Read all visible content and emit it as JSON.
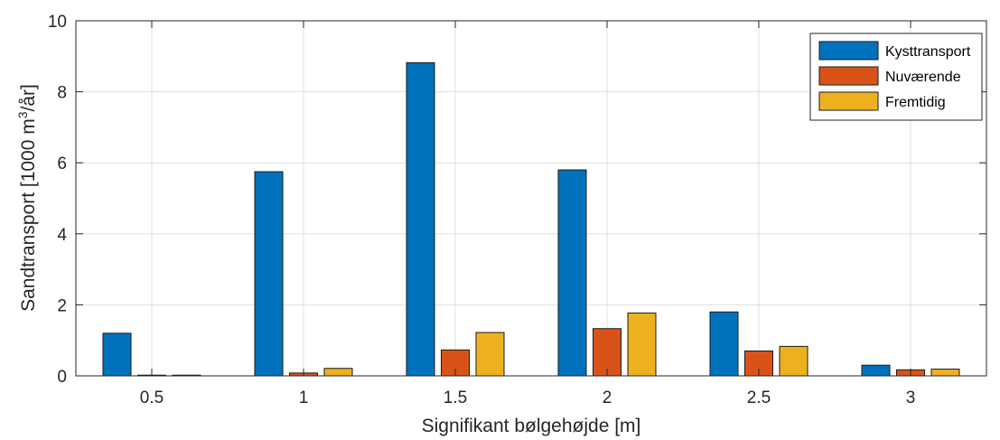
{
  "chart_data": {
    "type": "bar",
    "categories": [
      "0.5",
      "1",
      "1.5",
      "2",
      "2.5",
      "3"
    ],
    "series": [
      {
        "name": "Kysttransport",
        "color": "#0072BD",
        "values": [
          1.2,
          5.75,
          8.82,
          5.8,
          1.8,
          0.3
        ]
      },
      {
        "name": "Nuværende",
        "color": "#D95319",
        "values": [
          0.02,
          0.08,
          0.73,
          1.33,
          0.7,
          0.17
        ]
      },
      {
        "name": "Fremtidig",
        "color": "#EDB120",
        "values": [
          0.02,
          0.21,
          1.22,
          1.77,
          0.83,
          0.19
        ]
      }
    ],
    "yticks": [
      "0",
      "2",
      "4",
      "6",
      "8",
      "10"
    ],
    "xlabel": "Signifikant bølgehøjde [m]",
    "ylabel_pre": "Sandtransport [1000 m",
    "ylabel_sup": "3",
    "ylabel_post": "/år]",
    "ylim": [
      0,
      10
    ],
    "grid": true,
    "legend_position": "top-right"
  }
}
